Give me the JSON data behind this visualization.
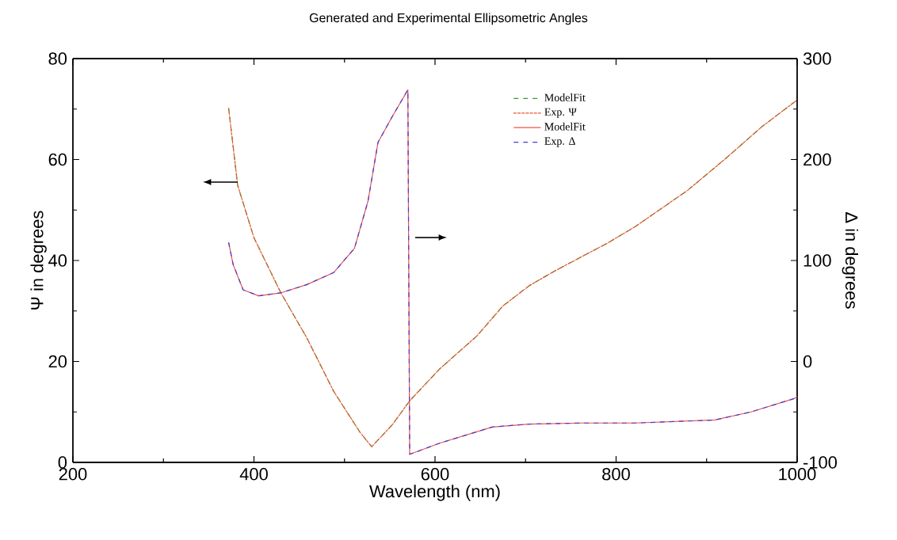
{
  "chart_data": {
    "type": "line",
    "title": "Generated and Experimental Ellipsometric Angles",
    "xlabel": "Wavelength (nm)",
    "ylabel": "Ψ in degrees",
    "y2label": "Δ in degrees",
    "xlim": [
      200,
      1000
    ],
    "xticks": [
      200,
      400,
      600,
      800,
      1000
    ],
    "ylim": [
      0,
      80
    ],
    "yticks": [
      0,
      20,
      40,
      60,
      80
    ],
    "y2lim": [
      -100,
      300
    ],
    "y2ticks": [
      -100,
      0,
      100,
      200,
      300
    ],
    "legend": "top right",
    "grid": false,
    "marker": "none",
    "series": [
      {
        "name": "ModelFit",
        "color": "#2e9e2e",
        "line_style": "dashed",
        "axis": "y",
        "x": [
          372,
          382,
          400,
          430,
          458,
          488,
          517,
          530,
          553,
          572,
          605,
          646,
          675,
          704,
          733,
          791,
          821,
          879,
          921,
          961,
          1000
        ],
        "values": [
          70.2,
          54.9,
          44.5,
          33.5,
          24.8,
          14.1,
          6,
          3.1,
          7.5,
          12.2,
          18.5,
          25,
          31,
          35,
          38,
          43.5,
          46.7,
          53.9,
          60.2,
          66.5,
          71.8
        ]
      },
      {
        "name": "Exp. Ψ",
        "color": "#e8552e",
        "line_style": "dotted",
        "axis": "y",
        "x": [
          372,
          382,
          400,
          430,
          458,
          488,
          517,
          530,
          553,
          572,
          605,
          646,
          675,
          704,
          733,
          791,
          821,
          879,
          921,
          961,
          1000
        ],
        "values": [
          70.2,
          54.9,
          44.5,
          33.5,
          24.8,
          14.1,
          6,
          3.1,
          7.5,
          12.2,
          18.5,
          25,
          31,
          35,
          38,
          43.5,
          46.7,
          53.9,
          60.2,
          66.5,
          71.8
        ]
      },
      {
        "name": "ModelFit",
        "color": "#f05050",
        "line_style": "solid",
        "axis": "y2",
        "x": [
          372,
          377,
          388,
          405,
          430,
          458,
          488,
          511,
          526,
          537,
          553,
          570,
          572,
          605,
          663,
          704,
          763,
          821,
          909,
          949,
          996,
          1000
        ],
        "values": [
          118,
          96,
          71,
          65,
          68,
          76,
          88,
          112,
          159,
          217,
          243,
          269,
          -92,
          -81,
          -65,
          -62,
          -61,
          -61,
          -58,
          -50,
          -37,
          -35
        ]
      },
      {
        "name": "Exp. Δ",
        "color": "#4040d0",
        "line_style": "dashed",
        "axis": "y2",
        "x": [
          372,
          377,
          388,
          405,
          430,
          458,
          488,
          511,
          526,
          537,
          553,
          570,
          572,
          605,
          663,
          704,
          763,
          821,
          909,
          949,
          996,
          1000
        ],
        "values": [
          118,
          96,
          71,
          65,
          68,
          76,
          88,
          112,
          159,
          217,
          243,
          269,
          -92,
          -81,
          -65,
          -62,
          -61,
          -61,
          -58,
          -50,
          -37,
          -35
        ]
      }
    ]
  }
}
